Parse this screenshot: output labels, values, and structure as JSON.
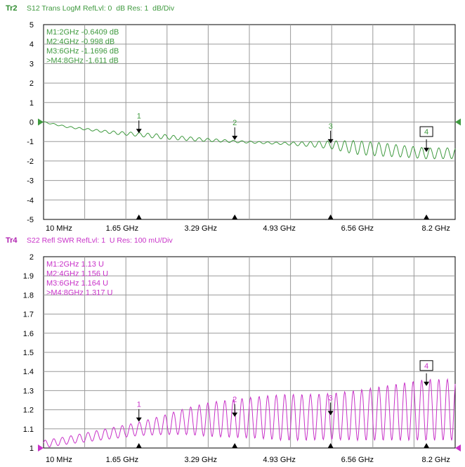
{
  "chart_data": [
    {
      "type": "line",
      "trace_id": "Tr2",
      "header": "S12 Trans LogM RefLvl: 0  dB Res: 1  dB/Div",
      "color": "#3f9a3f",
      "id_color": "#2e8b2e",
      "ylim": [
        -5,
        5
      ],
      "y_ticks": [
        "5",
        "4",
        "3",
        "2",
        "1",
        "0",
        "-1",
        "-2",
        "-3",
        "-4",
        "-5"
      ],
      "reference_level": 0,
      "xlim": [
        0.01,
        8.6
      ],
      "x_ticks": [
        {
          "x": 0.01,
          "label": "10 MHz"
        },
        {
          "x": 1.65,
          "label": "1.65 GHz"
        },
        {
          "x": 3.29,
          "label": "3.29 GHz"
        },
        {
          "x": 4.93,
          "label": "4.93 GHz"
        },
        {
          "x": 6.56,
          "label": "6.56 GHz"
        },
        {
          "x": 8.2,
          "label": "8.2 GHz"
        }
      ],
      "marker_readouts": [
        "M1:2GHz  -0.6409  dB",
        "M2:4GHz  -0.998  dB",
        "M3:6GHz  -1.1696  dB",
        ">M4:8GHz  -1.611  dB"
      ],
      "markers": [
        {
          "id": "1",
          "x": 2,
          "y": -0.6409,
          "boxed": false
        },
        {
          "id": "2",
          "x": 4,
          "y": -0.998,
          "boxed": false
        },
        {
          "id": "3",
          "x": 6,
          "y": -1.1696,
          "boxed": false
        },
        {
          "id": "4",
          "x": 8,
          "y": -1.611,
          "boxed": true
        }
      ],
      "series": [
        {
          "x": [
            0.01,
            0.5,
            1.0,
            1.5,
            2.0,
            2.5,
            3.0,
            3.5,
            4.0,
            4.5,
            5.0,
            5.5,
            6.0,
            6.5,
            7.0,
            7.5,
            8.0,
            8.6
          ],
          "y": [
            0.0,
            -0.25,
            -0.4,
            -0.55,
            -0.64,
            -0.75,
            -0.85,
            -0.93,
            -1.0,
            -1.05,
            -1.1,
            -1.13,
            -1.17,
            -1.3,
            -1.4,
            -1.5,
            -1.61,
            -1.6
          ],
          "ripple": [
            0.03,
            0.04,
            0.05,
            0.08,
            0.1,
            0.12,
            0.1,
            0.08,
            0.06,
            0.05,
            0.06,
            0.12,
            0.2,
            0.35,
            0.35,
            0.3,
            0.28,
            0.28
          ]
        }
      ]
    },
    {
      "type": "line",
      "trace_id": "Tr4",
      "header": "S22 Refl SWR RefLvl: 1  U Res: 100 mU/Div",
      "color": "#c832c8",
      "id_color": "#b020b0",
      "ylim": [
        1,
        2
      ],
      "y_ticks": [
        "2",
        "1.9",
        "1.8",
        "1.7",
        "1.6",
        "1.5",
        "1.4",
        "1.3",
        "1.2",
        "1.1",
        "1"
      ],
      "reference_level": 1,
      "xlim": [
        0.01,
        8.6
      ],
      "x_ticks": [
        {
          "x": 0.01,
          "label": "10 MHz"
        },
        {
          "x": 1.65,
          "label": "1.65 GHz"
        },
        {
          "x": 3.29,
          "label": "3.29 GHz"
        },
        {
          "x": 4.93,
          "label": "4.93 GHz"
        },
        {
          "x": 6.56,
          "label": "6.56 GHz"
        },
        {
          "x": 8.2,
          "label": "8.2 GHz"
        }
      ],
      "marker_readouts": [
        "M1:2GHz  1.13  U",
        "M2:4GHz  1.156  U",
        "M3:6GHz  1.164  U",
        ">M4:8GHz  1.317  U"
      ],
      "markers": [
        {
          "id": "1",
          "x": 2,
          "y": 1.13,
          "boxed": false
        },
        {
          "id": "2",
          "x": 4,
          "y": 1.156,
          "boxed": false
        },
        {
          "id": "3",
          "x": 6,
          "y": 1.164,
          "boxed": false
        },
        {
          "id": "4",
          "x": 8,
          "y": 1.317,
          "boxed": true
        }
      ],
      "series": [
        {
          "x": [
            0.01,
            0.5,
            1.0,
            1.5,
            2.0,
            2.5,
            3.0,
            3.5,
            4.0,
            4.5,
            5.0,
            5.5,
            6.0,
            6.5,
            7.0,
            7.5,
            8.0,
            8.6
          ],
          "y": [
            1.02,
            1.04,
            1.06,
            1.08,
            1.1,
            1.12,
            1.14,
            1.15,
            1.155,
            1.16,
            1.16,
            1.16,
            1.165,
            1.17,
            1.18,
            1.19,
            1.2,
            1.2
          ],
          "ripple": [
            0.02,
            0.02,
            0.025,
            0.03,
            0.035,
            0.05,
            0.07,
            0.09,
            0.1,
            0.11,
            0.12,
            0.12,
            0.12,
            0.13,
            0.14,
            0.15,
            0.16,
            0.16
          ]
        }
      ]
    }
  ]
}
